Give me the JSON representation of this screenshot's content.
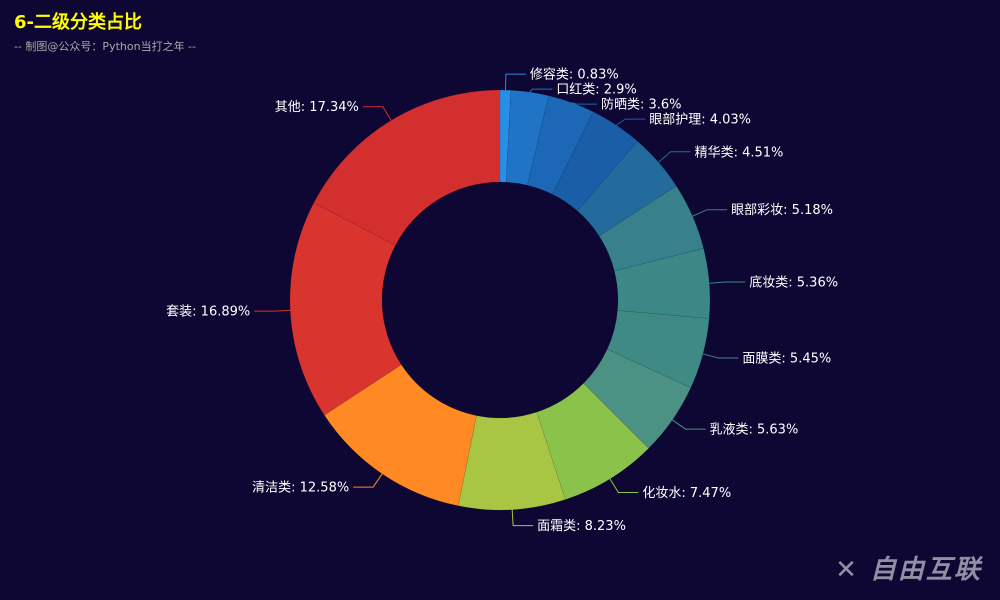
{
  "title": "6-二级分类占比",
  "subtitle": "-- 制图@公众号：Python当打之年 --",
  "watermark": "自由互联",
  "chart_data": {
    "type": "pie",
    "variant": "donut",
    "legend": "none",
    "label_format": "{name}: {value}%",
    "slices": [
      {
        "name": "修容类",
        "value": 0.83,
        "color": "#2a8ee6"
      },
      {
        "name": "口红类",
        "value": 2.9,
        "color": "#1f74c6"
      },
      {
        "name": "防晒类",
        "value": 3.6,
        "color": "#1c68b6"
      },
      {
        "name": "眼部护理",
        "value": 4.03,
        "color": "#1a5ea8"
      },
      {
        "name": "精华类",
        "value": 4.51,
        "color": "#236b9c"
      },
      {
        "name": "眼部彩妆",
        "value": 5.18,
        "color": "#37808c"
      },
      {
        "name": "底妆类",
        "value": 5.36,
        "color": "#3c8886"
      },
      {
        "name": "面膜类",
        "value": 5.45,
        "color": "#3f8a84"
      },
      {
        "name": "乳液类",
        "value": 5.63,
        "color": "#4b9184"
      },
      {
        "name": "化妆水",
        "value": 7.47,
        "color": "#8bc34a"
      },
      {
        "name": "面霜类",
        "value": 8.23,
        "color": "#a8c544"
      },
      {
        "name": "清洁类",
        "value": 12.58,
        "color": "#ff8a24"
      },
      {
        "name": "套装",
        "value": 16.89,
        "color": "#d9352e"
      },
      {
        "name": "其他",
        "value": 17.34,
        "color": "#d32f2f"
      }
    ]
  }
}
